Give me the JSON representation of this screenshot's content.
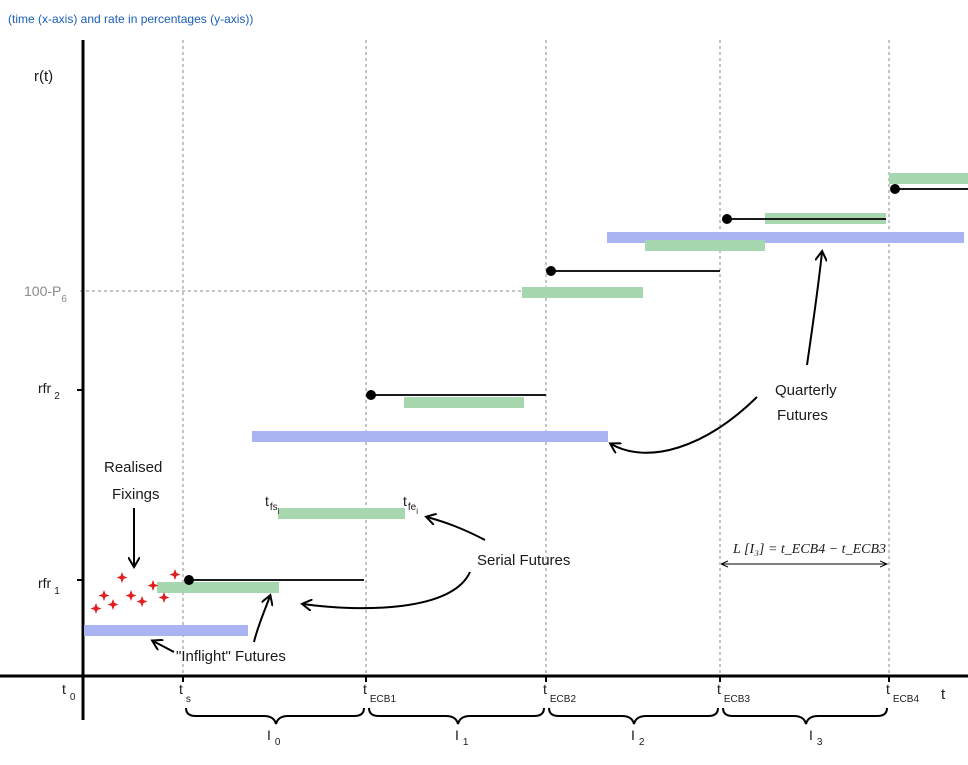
{
  "caption": "(time (x-axis) and rate in percentages (y-axis))",
  "axes": {
    "y_label": "r(t)",
    "x_label": "t"
  },
  "y_ticks": {
    "p6": {
      "main": "100-P",
      "sub": "6"
    },
    "rfr2": {
      "main": "rfr",
      "sub": "2"
    },
    "rfr1": {
      "main": "rfr",
      "sub": "1"
    }
  },
  "x_ticks": [
    {
      "main": "t",
      "sub": "0"
    },
    {
      "main": "t",
      "sub": "s"
    },
    {
      "main": "t",
      "sub": "ECB1"
    },
    {
      "main": "t",
      "sub": "ECB2"
    },
    {
      "main": "t",
      "sub": "ECB3"
    },
    {
      "main": "t",
      "sub": "ECB4"
    }
  ],
  "intervals": [
    {
      "main": "I",
      "sub": "0"
    },
    {
      "main": "I",
      "sub": "1"
    },
    {
      "main": "I",
      "sub": "2"
    },
    {
      "main": "I",
      "sub": "3"
    }
  ],
  "annotations": {
    "realised_line1": "Realised",
    "realised_line2": "Fixings",
    "serial_futures": "Serial Futures",
    "inflight_futures": "\"Inflight\" Futures",
    "quarterly_line1": "Quarterly",
    "quarterly_line2": "Futures",
    "tfs": {
      "main": "t",
      "sub": "fs",
      "subsub": "i"
    },
    "tfe": {
      "main": "t",
      "sub": "fe",
      "subsub": "i"
    },
    "length_formula": "L [I₃] = t_ECB4 − t_ECB3"
  },
  "colors": {
    "axis": "#000000",
    "step": "#1a1a1a",
    "blue_bar": "#aab4f2",
    "green_bar": "#a6d7ae",
    "fixing": "#e01e1e",
    "grid": "#888888",
    "caption": "#1a5fb4"
  }
}
